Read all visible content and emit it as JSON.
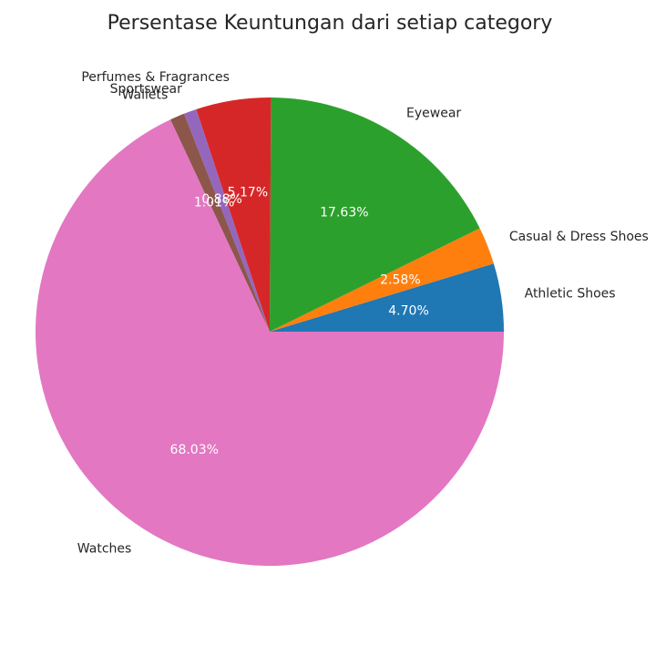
{
  "chart_data": {
    "type": "pie",
    "title": "Persentase Keuntungan dari setiap category",
    "start_angle_deg": 0,
    "direction": "counterclockwise",
    "slices": [
      {
        "label": "Athletic Shoes",
        "value": 4.7,
        "pct_label": "4.70%",
        "color": "#1f77b4"
      },
      {
        "label": "Casual & Dress Shoes",
        "value": 2.58,
        "pct_label": "2.58%",
        "color": "#ff7f0e"
      },
      {
        "label": "Eyewear",
        "value": 17.63,
        "pct_label": "17.63%",
        "color": "#2ca02c"
      },
      {
        "label": "Perfumes & Fragrances",
        "value": 5.17,
        "pct_label": "5.17%",
        "color": "#d62728"
      },
      {
        "label": "Sportswear",
        "value": 0.88,
        "pct_label": "0.88%",
        "color": "#9467bd"
      },
      {
        "label": "Wallets",
        "value": 1.01,
        "pct_label": "1.01%",
        "color": "#8c564b"
      },
      {
        "label": "Watches",
        "value": 68.03,
        "pct_label": "68.03%",
        "color": "#e377c2"
      }
    ]
  }
}
